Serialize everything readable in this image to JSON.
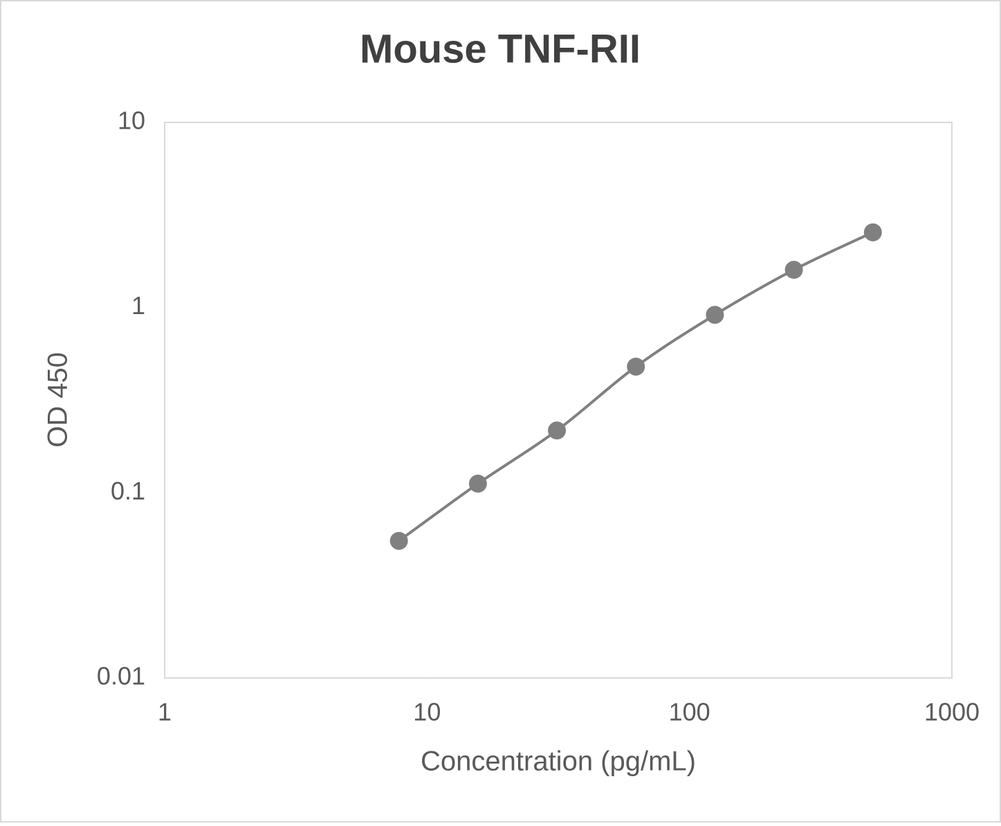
{
  "chart_data": {
    "type": "line",
    "title": "Mouse TNF-RII",
    "x_label": "Concentration (pg/mL)",
    "y_label": "OD 450",
    "x": [
      7.8125,
      15.625,
      31.25,
      62.5,
      125,
      250,
      500
    ],
    "series": [
      {
        "color": "#808080",
        "values": [
          0.055,
          0.112,
          0.217,
          0.48,
          0.914,
          1.6,
          2.55
        ]
      }
    ],
    "xscale": "log",
    "yscale": "log",
    "xlim": [
      1,
      1000
    ],
    "ylim": [
      0.01,
      10
    ],
    "xticks": [
      1,
      10,
      100,
      1000
    ],
    "yticks": [
      0.01,
      0.1,
      1,
      10
    ],
    "grid": false,
    "markers": true,
    "smooth": true
  }
}
